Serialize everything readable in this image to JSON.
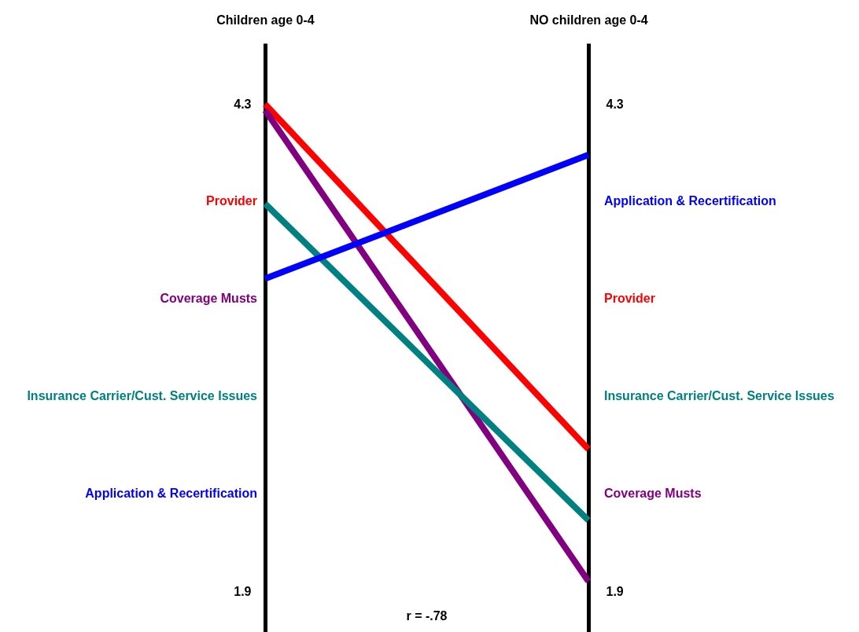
{
  "chart_data": {
    "type": "line",
    "categories": [
      "Children age 0-4",
      "NO children age 0-4"
    ],
    "series": [
      {
        "name": "Provider",
        "color": "#ff0000",
        "values": [
          4.3,
          2.6
        ]
      },
      {
        "name": "Coverage Musts",
        "color": "#800080",
        "values": [
          4.27,
          1.95
        ]
      },
      {
        "name": "Insurance Carrier/Cust. Service Issues",
        "color": "#008080",
        "values": [
          3.81,
          2.25
        ]
      },
      {
        "name": "Application & Recertification",
        "color": "#0000ff",
        "values": [
          3.44,
          4.05
        ]
      }
    ],
    "ylim": [
      1.7,
      4.6
    ],
    "yticks": [
      4.3,
      1.9
    ],
    "y2lim": [
      1.7,
      4.6
    ],
    "y2ticks": [
      4.3,
      1.9
    ],
    "annotations": [
      "r = -.78"
    ]
  }
}
